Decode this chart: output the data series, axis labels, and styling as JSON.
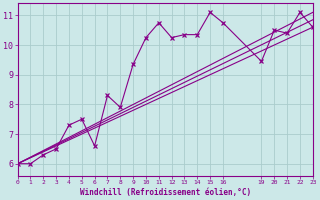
{
  "background_color": "#cce8e8",
  "grid_color": "#aacccc",
  "line_color": "#880088",
  "xlabel": "Windchill (Refroidissement éolien,°C)",
  "xlim": [
    0,
    23
  ],
  "ylim": [
    5.6,
    11.4
  ],
  "yticks": [
    6,
    7,
    8,
    9,
    10,
    11
  ],
  "xticks": [
    0,
    1,
    2,
    3,
    4,
    5,
    6,
    7,
    8,
    9,
    10,
    11,
    12,
    13,
    14,
    15,
    16,
    19,
    20,
    21,
    22,
    23
  ],
  "main_x": [
    0,
    1,
    2,
    3,
    4,
    5,
    6,
    7,
    8,
    9,
    10,
    11,
    12,
    13,
    14,
    15,
    16,
    19,
    20,
    21,
    22,
    23
  ],
  "main_y": [
    6.0,
    6.0,
    6.3,
    6.5,
    7.3,
    7.5,
    6.6,
    8.3,
    7.9,
    9.35,
    10.25,
    10.75,
    10.25,
    10.35,
    10.35,
    11.1,
    10.75,
    9.45,
    10.5,
    10.4,
    11.1,
    10.6
  ],
  "ref_lines": [
    {
      "x": [
        0,
        23
      ],
      "y": [
        6.0,
        11.1
      ]
    },
    {
      "x": [
        0,
        23
      ],
      "y": [
        6.0,
        10.6
      ]
    },
    {
      "x": [
        0,
        23
      ],
      "y": [
        6.0,
        10.85
      ]
    }
  ]
}
